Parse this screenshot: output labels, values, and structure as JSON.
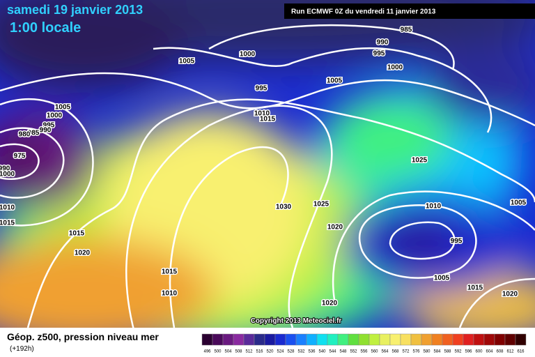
{
  "header": {
    "date": "samedi 19 janvier 2013",
    "time": "1:00 locale",
    "run": "Run ECMWF 0Z du vendredi 11 janvier 2013"
  },
  "isobar_labels": [
    "985",
    "990",
    "995",
    "1000",
    "1005",
    "1000",
    "1005",
    "995",
    "1005",
    "1000",
    "1010",
    "1015",
    "995",
    "990",
    "985",
    "980",
    "975",
    "990",
    "1000",
    "1010",
    "1015",
    "1025",
    "1030",
    "1025",
    "1010",
    "1005",
    "1020",
    "995",
    "1015",
    "1020",
    "1015",
    "1010",
    "1005",
    "1015",
    "1020",
    "1020"
  ],
  "copyright": "Copyright 2013 Meteociel.fr",
  "footer": {
    "title": "Géop. z500, pression niveau mer",
    "lead": "(+192h)"
  },
  "colorbar": {
    "labels": [
      "496",
      "500",
      "504",
      "508",
      "512",
      "516",
      "520",
      "524",
      "528",
      "532",
      "536",
      "540",
      "544",
      "548",
      "552",
      "556",
      "560",
      "564",
      "568",
      "572",
      "576",
      "580",
      "584",
      "588",
      "592",
      "596",
      "600",
      "604",
      "608",
      "612",
      "616"
    ],
    "colors": [
      "#2a0030",
      "#4a0a5a",
      "#6a1a80",
      "#8a2aa0",
      "#5a2a9a",
      "#2a2a8a",
      "#1a1aa0",
      "#1a2ad0",
      "#1a50f0",
      "#1a80ff",
      "#10b0ff",
      "#10e0f0",
      "#20f0c0",
      "#40f080",
      "#60e040",
      "#90e030",
      "#c0f040",
      "#e8f060",
      "#f8f070",
      "#f8e060",
      "#f0c040",
      "#f0a030",
      "#f08020",
      "#f06020",
      "#f04020",
      "#e02020",
      "#c01010",
      "#a00808",
      "#800000",
      "#600000",
      "#300000"
    ]
  }
}
